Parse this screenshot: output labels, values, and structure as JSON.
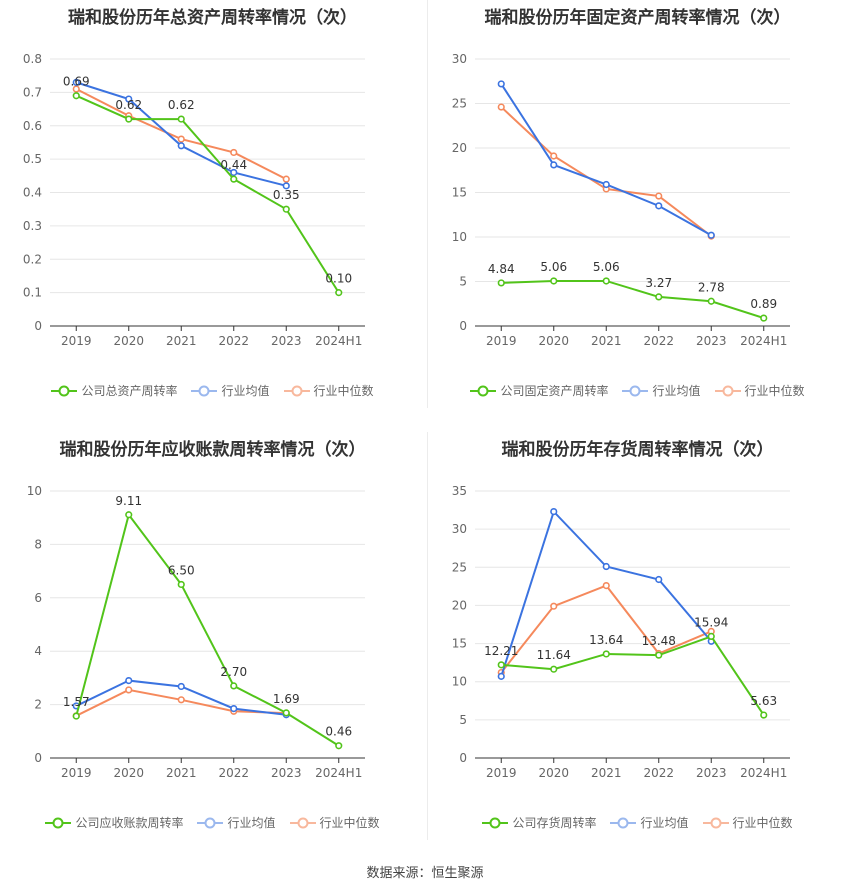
{
  "source": "数据来源：恒生聚源",
  "legend_common": [
    "行业均值",
    "行业中位数"
  ],
  "colors": {
    "company": "#52c41a",
    "mean": "#3b73e0",
    "median": "#f5895c"
  },
  "chart_data": [
    {
      "type": "line",
      "title": "瑞和股份历年总资产周转率情况（次）",
      "categories": [
        "2019",
        "2020",
        "2021",
        "2022",
        "2023",
        "2024H1"
      ],
      "ylim": [
        0,
        0.8
      ],
      "yticks": [
        "0",
        "0.1",
        "0.2",
        "0.3",
        "0.4",
        "0.5",
        "0.6",
        "0.7",
        "0.8"
      ],
      "label_decimals": 2,
      "series": [
        {
          "name": "公司总资产周转率",
          "values": [
            0.69,
            0.62,
            0.62,
            0.44,
            0.35,
            0.1
          ],
          "labels": true
        },
        {
          "name": "行业均值",
          "values": [
            0.73,
            0.68,
            0.54,
            0.46,
            0.42,
            null
          ]
        },
        {
          "name": "行业中位数",
          "values": [
            0.71,
            0.63,
            0.56,
            0.52,
            0.44,
            null
          ]
        }
      ]
    },
    {
      "type": "line",
      "title": "瑞和股份历年固定资产周转率情况（次）",
      "categories": [
        "2019",
        "2020",
        "2021",
        "2022",
        "2023",
        "2024H1"
      ],
      "ylim": [
        0,
        30
      ],
      "yticks": [
        "0",
        "5",
        "10",
        "15",
        "20",
        "25",
        "30"
      ],
      "label_decimals": 2,
      "series": [
        {
          "name": "公司固定资产周转率",
          "values": [
            4.84,
            5.06,
            5.06,
            3.27,
            2.78,
            0.89
          ],
          "labels": true
        },
        {
          "name": "行业均值",
          "values": [
            27.2,
            18.1,
            15.9,
            13.5,
            10.2,
            null
          ]
        },
        {
          "name": "行业中位数",
          "values": [
            24.6,
            19.1,
            15.4,
            14.6,
            10.1,
            null
          ]
        }
      ]
    },
    {
      "type": "line",
      "title": "瑞和股份历年应收账款周转率情况（次）",
      "categories": [
        "2019",
        "2020",
        "2021",
        "2022",
        "2023",
        "2024H1"
      ],
      "ylim": [
        0,
        10
      ],
      "yticks": [
        "0",
        "2",
        "4",
        "6",
        "8",
        "10"
      ],
      "label_decimals": 2,
      "series": [
        {
          "name": "公司应收账款周转率",
          "values": [
            1.57,
            9.11,
            6.5,
            2.7,
            1.69,
            0.46
          ],
          "labels": true
        },
        {
          "name": "行业均值",
          "values": [
            1.95,
            2.9,
            2.68,
            1.85,
            1.62,
            null
          ]
        },
        {
          "name": "行业中位数",
          "values": [
            1.58,
            2.55,
            2.18,
            1.75,
            1.68,
            null
          ]
        }
      ]
    },
    {
      "type": "line",
      "title": "瑞和股份历年存货周转率情况（次）",
      "categories": [
        "2019",
        "2020",
        "2021",
        "2022",
        "2023",
        "2024H1"
      ],
      "ylim": [
        0,
        35
      ],
      "yticks": [
        "0",
        "5",
        "10",
        "15",
        "20",
        "25",
        "30",
        "35"
      ],
      "label_decimals": 2,
      "series": [
        {
          "name": "公司存货周转率",
          "values": [
            12.21,
            11.64,
            13.64,
            13.48,
            15.94,
            5.63
          ],
          "labels": true
        },
        {
          "name": "行业均值",
          "values": [
            10.7,
            32.3,
            25.1,
            23.4,
            15.3,
            null
          ]
        },
        {
          "name": "行业中位数",
          "values": [
            11.2,
            19.9,
            22.6,
            13.7,
            16.6,
            null
          ]
        }
      ]
    }
  ]
}
